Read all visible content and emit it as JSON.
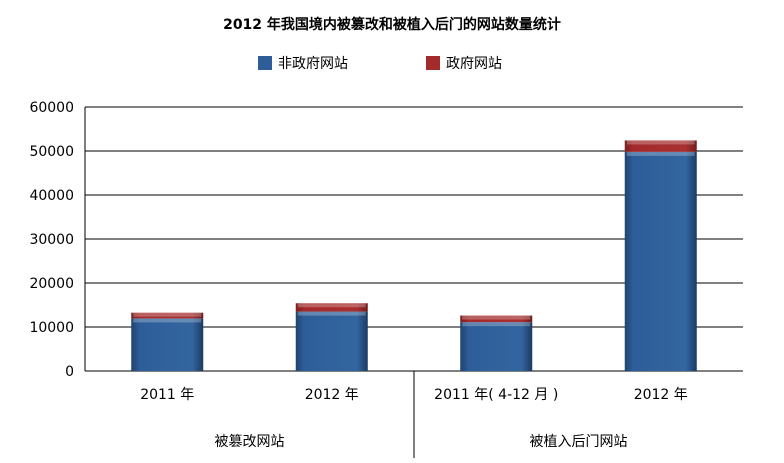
{
  "chart_data": {
    "type": "bar",
    "stacked": true,
    "title": "2012 年我国境内被篡改和被植入后门的网站数量统计",
    "categories": [
      "2011 年",
      "2012 年",
      "2011 年( 4-12 月 )",
      "2012 年"
    ],
    "groups": [
      {
        "label": "被篡改网站",
        "categories": [
          0,
          1
        ]
      },
      {
        "label": "被植入后门网站",
        "categories": [
          2,
          3
        ]
      }
    ],
    "series": [
      {
        "name": "非政府网站",
        "color": "#2E5E99",
        "values": [
          11950,
          13500,
          11100,
          49800
        ]
      },
      {
        "name": "政府网站",
        "color": "#A32B2B",
        "values": [
          1300,
          1900,
          1500,
          2600
        ]
      }
    ],
    "ylim": [
      0,
      60000
    ],
    "yticks": [
      "0",
      "10000",
      "20000",
      "30000",
      "40000",
      "50000",
      "60000"
    ],
    "grid": true,
    "legend_position": "top"
  }
}
